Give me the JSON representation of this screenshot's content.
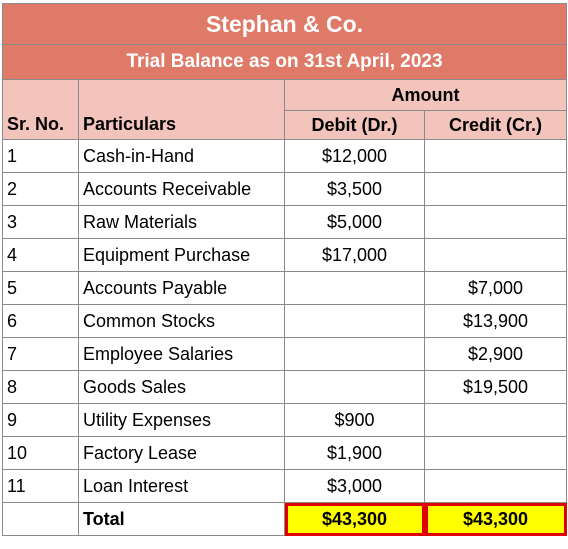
{
  "company": "Stephan & Co.",
  "subtitle": "Trial Balance as on 31st April, 2023",
  "headers": {
    "sr_no": "Sr. No.",
    "particulars": "Particulars",
    "amount": "Amount",
    "debit": "Debit (Dr.)",
    "credit": "Credit (Cr.)"
  },
  "rows": [
    {
      "sr": "1",
      "particular": "Cash-in-Hand",
      "debit": "$12,000",
      "credit": ""
    },
    {
      "sr": "2",
      "particular": "Accounts Receivable",
      "debit": "$3,500",
      "credit": ""
    },
    {
      "sr": "3",
      "particular": "Raw Materials",
      "debit": "$5,000",
      "credit": ""
    },
    {
      "sr": "4",
      "particular": "Equipment Purchase",
      "debit": "$17,000",
      "credit": ""
    },
    {
      "sr": "5",
      "particular": "Accounts Payable",
      "debit": "",
      "credit": "$7,000"
    },
    {
      "sr": "6",
      "particular": "Common Stocks",
      "debit": "",
      "credit": "$13,900"
    },
    {
      "sr": "7",
      "particular": "Employee Salaries",
      "debit": "",
      "credit": "$2,900"
    },
    {
      "sr": "8",
      "particular": "Goods Sales",
      "debit": "",
      "credit": "$19,500"
    },
    {
      "sr": "9",
      "particular": "Utility Expenses",
      "debit": "$900",
      "credit": ""
    },
    {
      "sr": "10",
      "particular": "Factory Lease",
      "debit": "$1,900",
      "credit": ""
    },
    {
      "sr": "11",
      "particular": "Loan Interest",
      "debit": "$3,000",
      "credit": ""
    }
  ],
  "total": {
    "label": "Total",
    "debit": "$43,300",
    "credit": "$43,300"
  },
  "colors": {
    "header_band": "#e07a68",
    "subheader_fill": "#f2c4bc",
    "total_highlight": "#ffff00",
    "total_border": "#e00000"
  }
}
